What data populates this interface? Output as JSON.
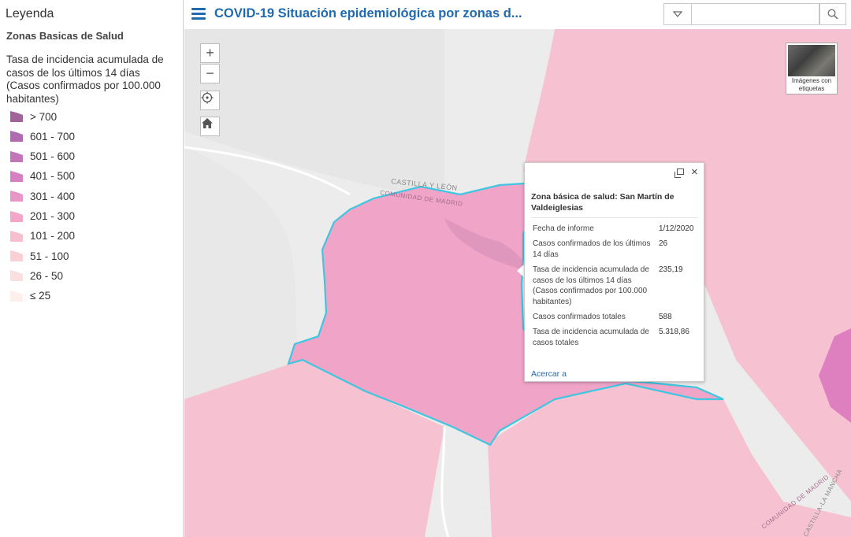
{
  "header": {
    "title": "COVID-19 Situación epidemiológica por zonas d...",
    "search_placeholder": ""
  },
  "legend": {
    "heading": "Leyenda",
    "layer_name": "Zonas Basicas de Salud",
    "description": "Tasa de incidencia acumulada de casos de los últimos 14 días (Casos confirmados por 100.000 habitantes)",
    "classes": [
      {
        "label": "> 700",
        "color": "#a0649a"
      },
      {
        "label": "601 - 700",
        "color": "#b06bb0"
      },
      {
        "label": "501 - 600",
        "color": "#c276b9"
      },
      {
        "label": "401 - 500",
        "color": "#d67fc2"
      },
      {
        "label": "301 - 400",
        "color": "#e896c8"
      },
      {
        "label": "201 - 300",
        "color": "#f3a6c8"
      },
      {
        "label": "101 - 200",
        "color": "#f6bfd0"
      },
      {
        "label": "51 - 100",
        "color": "#f8d0d6"
      },
      {
        "label": "26 - 50",
        "color": "#fadfe0"
      },
      {
        "label": "≤ 25",
        "color": "#fcefec"
      }
    ]
  },
  "map": {
    "region_labels": {
      "cyl": "CASTILLA Y LEÓN",
      "madrid_top": "COMUNIDAD DE MADRID",
      "madrid_bottom": "COMUNIDAD DE MADRID",
      "clm": "CASTILLA-LA MANCHA"
    },
    "basemap_label": "Imágenes con etiquetas",
    "colors": {
      "highlight_outline": "#3fc6e0",
      "selected_zone": "#f0a4c8",
      "zone_fill": "#f6c2d2",
      "high_zone": "#de7fc0"
    }
  },
  "popup": {
    "title": "Zona básica de salud: San Martín de Valdeiglesias",
    "attributes": [
      {
        "label": "Fecha de informe",
        "value": "1/12/2020"
      },
      {
        "label": "Casos confirmados de los últimos 14 días",
        "value": "26"
      },
      {
        "label": "Tasa de incidencia acumulada de casos de los últimos 14 días (Casos confirmados por 100.000 habitantes)",
        "value": "235,19"
      },
      {
        "label": "Casos confirmados totales",
        "value": "588"
      },
      {
        "label": "Tasa de incidencia acumulada de casos totales",
        "value": "5.318,86"
      }
    ],
    "zoom_link": "Acercar a"
  },
  "icons": {
    "menu": "menu-icon",
    "search": "search-icon",
    "dropdown": "chevron-down-icon",
    "zoom_in": "plus-icon",
    "zoom_out": "minus-icon",
    "locate": "locate-icon",
    "home": "home-icon",
    "dock": "dock-icon",
    "close": "close-icon"
  }
}
